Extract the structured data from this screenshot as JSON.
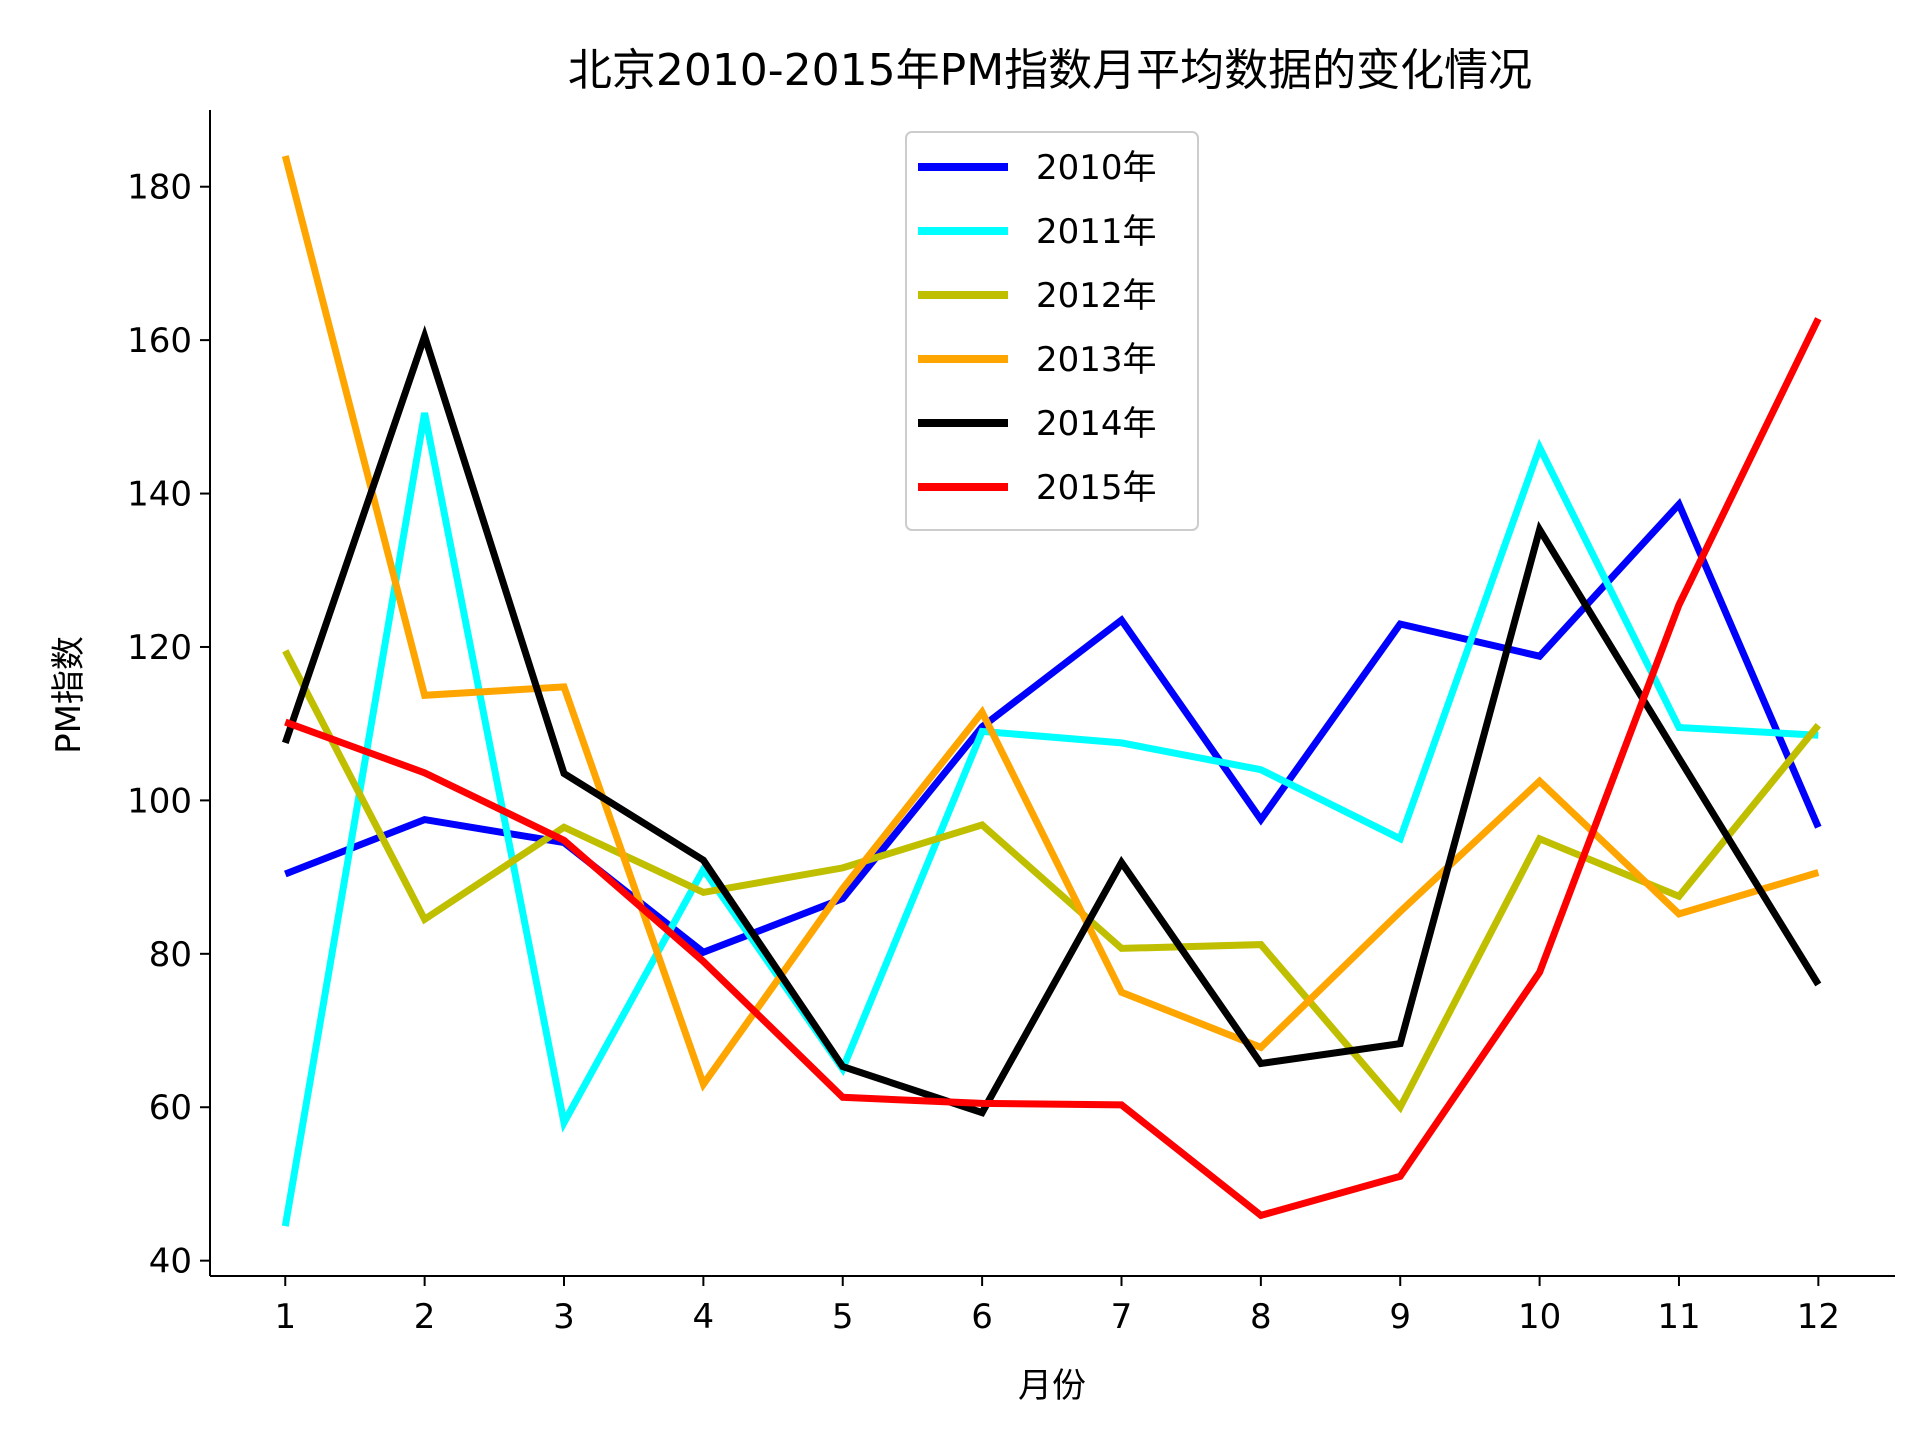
{
  "chart_data": {
    "type": "line",
    "title": "北京2010-2015年PM指数月平均数据的变化情况",
    "xlabel": "月份",
    "ylabel": "PM指数",
    "x": [
      1,
      2,
      3,
      4,
      5,
      6,
      7,
      8,
      9,
      10,
      11,
      12
    ],
    "xticks": [
      "1",
      "2",
      "3",
      "4",
      "5",
      "6",
      "7",
      "8",
      "9",
      "10",
      "11",
      "12"
    ],
    "yticks": [
      "40",
      "60",
      "80",
      "100",
      "120",
      "140",
      "160",
      "180"
    ],
    "ylim": [
      38,
      190
    ],
    "xlim": [
      0.46,
      12.55
    ],
    "legend_position": "upper-center",
    "grid": false,
    "series": [
      {
        "name": "2010年",
        "color": "#0000ff",
        "values": [
          90.4,
          97.5,
          94.5,
          80.2,
          87.2,
          109.6,
          123.5,
          97.5,
          123.0,
          118.8,
          138.6,
          96.5
        ]
      },
      {
        "name": "2011年",
        "color": "#00ffff",
        "values": [
          44.5,
          150.5,
          58.0,
          91.0,
          65.0,
          109.0,
          107.5,
          104.0,
          95.0,
          146.0,
          109.5,
          108.5
        ]
      },
      {
        "name": "2012年",
        "color": "#bfbf00",
        "values": [
          119.5,
          84.5,
          96.5,
          88.0,
          91.2,
          96.8,
          80.7,
          81.2,
          60.0,
          95.0,
          87.5,
          109.8
        ]
      },
      {
        "name": "2013年",
        "color": "#ffa500",
        "values": [
          184.0,
          113.7,
          114.8,
          63.0,
          88.5,
          111.5,
          75.0,
          67.8,
          85.5,
          102.5,
          85.2,
          90.6
        ]
      },
      {
        "name": "2014年",
        "color": "#000000",
        "values": [
          107.5,
          160.5,
          103.5,
          92.2,
          65.3,
          59.3,
          91.9,
          65.7,
          68.3,
          135.3,
          105.5,
          76.0
        ]
      },
      {
        "name": "2015年",
        "color": "#ff0000",
        "values": [
          110.2,
          103.6,
          94.8,
          79.0,
          61.3,
          60.5,
          60.3,
          45.9,
          51.0,
          77.6,
          125.5,
          162.8
        ]
      }
    ]
  }
}
